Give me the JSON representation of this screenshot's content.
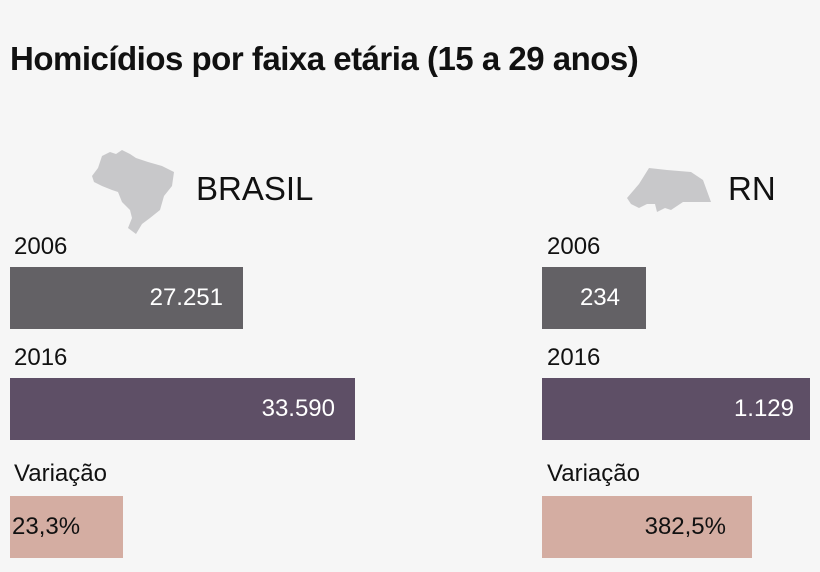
{
  "chart_data": {
    "type": "bar",
    "title": "Homicídios por faixa etária (15 a 29 anos)",
    "colors": {
      "2006": "#636165",
      "2016": "#5e4f66",
      "variacao": "#d4ada2"
    },
    "groups": [
      {
        "name": "BRASIL",
        "icon": "brazil-map-icon",
        "rows": [
          {
            "label": "2006",
            "value": "27.251"
          },
          {
            "label": "2016",
            "value": "33.590"
          },
          {
            "label": "Variação",
            "value": "23,3%"
          }
        ]
      },
      {
        "name": "RN",
        "icon": "rn-map-icon",
        "rows": [
          {
            "label": "2006",
            "value": "234"
          },
          {
            "label": "2016",
            "value": "1.129"
          },
          {
            "label": "Variação",
            "value": "382,5%"
          }
        ]
      }
    ]
  }
}
